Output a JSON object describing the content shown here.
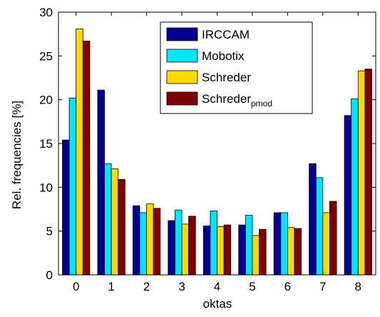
{
  "chart_data": {
    "type": "bar",
    "title": "",
    "xlabel": "oktas",
    "ylabel": "Rel. frequencies [%]",
    "categories": [
      "0",
      "1",
      "2",
      "3",
      "4",
      "5",
      "6",
      "7",
      "8"
    ],
    "ylim": [
      0,
      30
    ],
    "yticks": [
      0,
      5,
      10,
      15,
      20,
      25,
      30
    ],
    "grid": false,
    "legend_position": "top-right",
    "series": [
      {
        "name": "IRCCAM",
        "color": "#000091",
        "values": [
          15.4,
          21.1,
          7.9,
          6.2,
          5.6,
          5.7,
          7.1,
          12.7,
          18.2
        ]
      },
      {
        "name": "Mobotix",
        "color": "#00e5ff",
        "values": [
          20.2,
          12.7,
          7.1,
          7.4,
          7.3,
          6.8,
          7.1,
          11.1,
          20.1
        ]
      },
      {
        "name": "Schreder",
        "color": "#ffd800",
        "values": [
          28.1,
          12.1,
          8.1,
          5.8,
          5.5,
          4.5,
          5.4,
          7.1,
          23.3
        ]
      },
      {
        "name": "Schreder",
        "name_subscript": "pmod",
        "color": "#800000",
        "values": [
          26.7,
          10.9,
          7.6,
          6.7,
          5.7,
          5.2,
          5.3,
          8.4,
          23.5
        ]
      }
    ]
  }
}
